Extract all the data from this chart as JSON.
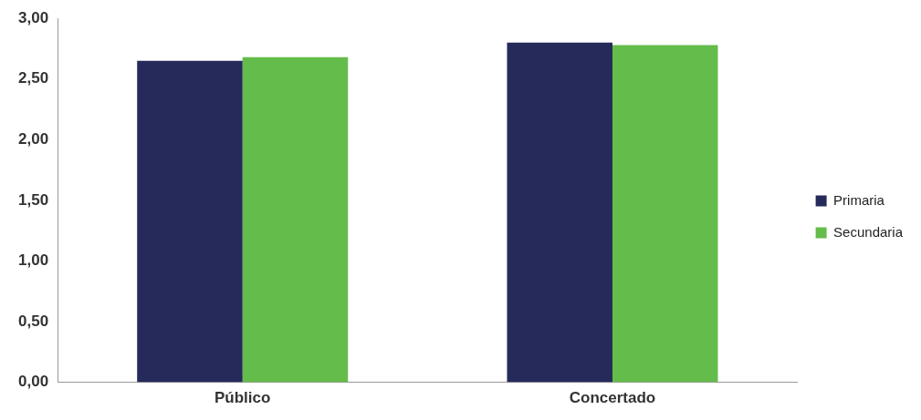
{
  "chart_data": {
    "type": "bar",
    "categories": [
      "Público",
      "Concertado"
    ],
    "series": [
      {
        "name": "Primaria",
        "color": "#252a5a",
        "values": [
          2.65,
          2.8
        ]
      },
      {
        "name": "Secundaria",
        "color": "#64bc4a",
        "values": [
          2.68,
          2.78
        ]
      }
    ],
    "ylim": [
      0,
      3
    ],
    "yticks": [
      {
        "value": 0,
        "label": "0,00"
      },
      {
        "value": 0.5,
        "label": "0,50"
      },
      {
        "value": 1,
        "label": "1,00"
      },
      {
        "value": 1.5,
        "label": "1,50"
      },
      {
        "value": 2,
        "label": "2,00"
      },
      {
        "value": 2.5,
        "label": "2,50"
      },
      {
        "value": 3,
        "label": "3,00"
      }
    ],
    "grid": false,
    "legend": "right"
  }
}
